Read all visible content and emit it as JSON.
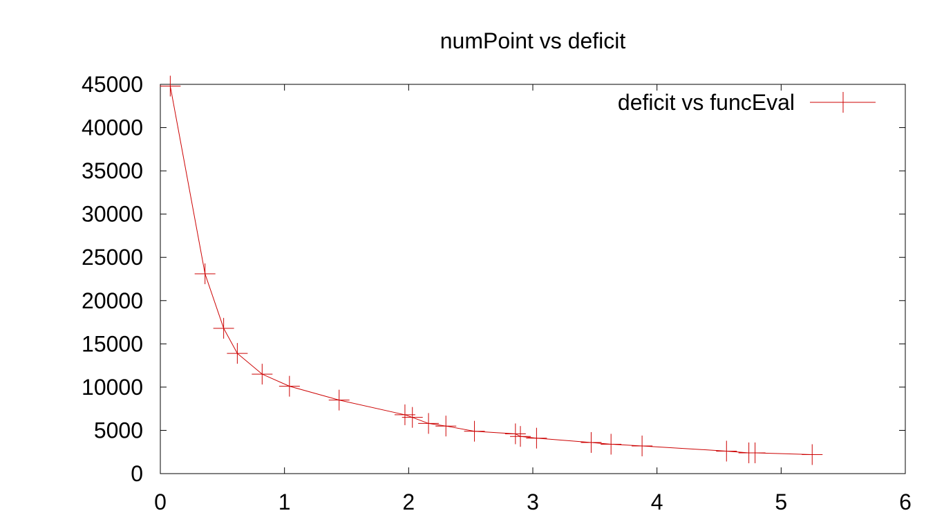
{
  "chart_data": {
    "type": "line",
    "title": "numPoint vs deficit",
    "xlabel": "",
    "ylabel": "",
    "xlim": [
      0,
      6
    ],
    "ylim": [
      0,
      45000
    ],
    "xticks": [
      "0",
      "1",
      "2",
      "3",
      "4",
      "5",
      "6"
    ],
    "yticks": [
      "0",
      "5000",
      "10000",
      "15000",
      "20000",
      "25000",
      "30000",
      "35000",
      "40000",
      "45000"
    ],
    "grid": false,
    "legend_position": "top-right",
    "colors": {
      "series": "#cc0000",
      "axes": "#000000"
    },
    "series": [
      {
        "name": "deficit vs funcEval",
        "marker": "plus",
        "points": [
          [
            0.08,
            44800
          ],
          [
            0.36,
            23100
          ],
          [
            0.51,
            16800
          ],
          [
            0.62,
            13900
          ],
          [
            0.82,
            11500
          ],
          [
            1.04,
            10100
          ],
          [
            1.44,
            8500
          ],
          [
            1.97,
            6800
          ],
          [
            2.03,
            6500
          ],
          [
            2.16,
            5800
          ],
          [
            2.3,
            5500
          ],
          [
            2.53,
            4900
          ],
          [
            2.86,
            4600
          ],
          [
            2.9,
            4300
          ],
          [
            3.03,
            4100
          ],
          [
            3.47,
            3600
          ],
          [
            3.63,
            3400
          ],
          [
            3.88,
            3200
          ],
          [
            4.56,
            2600
          ],
          [
            4.74,
            2400
          ],
          [
            4.79,
            2400
          ],
          [
            5.25,
            2200
          ]
        ]
      }
    ]
  }
}
